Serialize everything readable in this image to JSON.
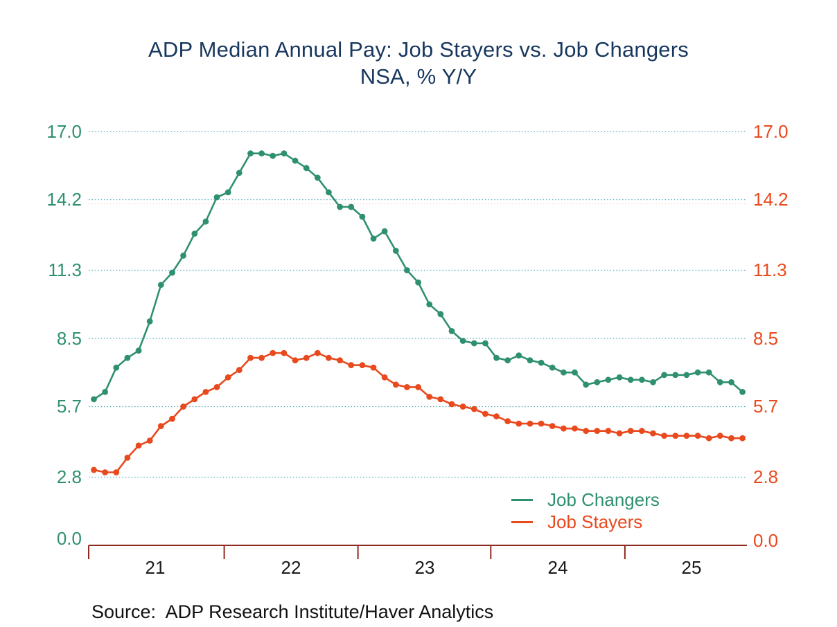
{
  "title": {
    "line1": "ADP Median Annual Pay: Job Stayers vs. Job Changers",
    "line2": "NSA, % Y/Y"
  },
  "source": "Source:  ADP Research Institute/Haver Analytics",
  "legend": [
    {
      "label": "Job Changers",
      "color": "#2F9070"
    },
    {
      "label": "Job Stayers",
      "color": "#E8491D"
    }
  ],
  "axes": {
    "left_ticks": [
      "17.0",
      "14.2",
      "11.3",
      "8.5",
      "5.7",
      "2.8",
      "0.0"
    ],
    "right_ticks": [
      "17.0",
      "14.2",
      "11.3",
      "8.5",
      "5.7",
      "2.8",
      "0.0"
    ],
    "x_ticks": [
      "21",
      "22",
      "23",
      "24",
      "25"
    ],
    "left_color": "#2F9070",
    "right_color": "#E8491D"
  },
  "colors": {
    "changers": "#2F9070",
    "stayers": "#E8491D",
    "grid": "#58AEBC",
    "grid_companion": "#F5D2C8",
    "axis_line": "#8E2A1F",
    "title": "#17375E",
    "year_labels": "#1A1A1A",
    "background": "#FFFFFF"
  },
  "chart_data": {
    "type": "line",
    "title": "ADP Median Annual Pay: Job Stayers vs. Job Changers",
    "subtitle": "NSA, % Y/Y",
    "xlabel": "",
    "ylabel": "% Y/Y",
    "x_unit": "month",
    "ylim": [
      0,
      17
    ],
    "yticks": [
      0.0,
      2.8,
      5.7,
      8.5,
      11.3,
      14.2,
      17.0
    ],
    "grid": "horizontal-dotted",
    "legend_position": "inside-lower-right",
    "categories": [
      "2021-01",
      "2021-02",
      "2021-03",
      "2021-04",
      "2021-05",
      "2021-06",
      "2021-07",
      "2021-08",
      "2021-09",
      "2021-10",
      "2021-11",
      "2021-12",
      "2022-01",
      "2022-02",
      "2022-03",
      "2022-04",
      "2022-05",
      "2022-06",
      "2022-07",
      "2022-08",
      "2022-09",
      "2022-10",
      "2022-11",
      "2022-12",
      "2023-01",
      "2023-02",
      "2023-03",
      "2023-04",
      "2023-05",
      "2023-06",
      "2023-07",
      "2023-08",
      "2023-09",
      "2023-10",
      "2023-11",
      "2023-12",
      "2024-01",
      "2024-02",
      "2024-03",
      "2024-04",
      "2024-05",
      "2024-06",
      "2024-07",
      "2024-08",
      "2024-09",
      "2024-10",
      "2024-11",
      "2024-12",
      "2025-01",
      "2025-02",
      "2025-03",
      "2025-04",
      "2025-05",
      "2025-06",
      "2025-07",
      "2025-08",
      "2025-09",
      "2025-10",
      "2025-11"
    ],
    "series": [
      {
        "name": "Job Changers",
        "color": "#2F9070",
        "values": [
          6.0,
          6.3,
          7.3,
          7.7,
          8.0,
          9.2,
          10.7,
          11.2,
          11.9,
          12.8,
          13.3,
          14.3,
          14.5,
          15.3,
          16.1,
          16.1,
          16.0,
          16.1,
          15.8,
          15.5,
          15.1,
          14.5,
          13.9,
          13.9,
          13.5,
          12.6,
          12.9,
          12.1,
          11.3,
          10.8,
          9.9,
          9.5,
          8.8,
          8.4,
          8.3,
          8.3,
          7.7,
          7.6,
          7.8,
          7.6,
          7.5,
          7.3,
          7.1,
          7.1,
          6.6,
          6.7,
          6.8,
          6.9,
          6.8,
          6.8,
          6.7,
          7.0,
          7.0,
          7.0,
          7.1,
          7.1,
          6.7,
          6.7,
          6.3
        ]
      },
      {
        "name": "Job Stayers",
        "color": "#E8491D",
        "values": [
          3.1,
          3.0,
          3.0,
          3.6,
          4.1,
          4.3,
          4.9,
          5.2,
          5.7,
          6.0,
          6.3,
          6.5,
          6.9,
          7.2,
          7.7,
          7.7,
          7.9,
          7.9,
          7.6,
          7.7,
          7.9,
          7.7,
          7.6,
          7.4,
          7.4,
          7.3,
          6.9,
          6.6,
          6.5,
          6.5,
          6.1,
          6.0,
          5.8,
          5.7,
          5.6,
          5.4,
          5.3,
          5.1,
          5.0,
          5.0,
          5.0,
          4.9,
          4.8,
          4.8,
          4.7,
          4.7,
          4.7,
          4.6,
          4.7,
          4.7,
          4.6,
          4.5,
          4.5,
          4.5,
          4.5,
          4.4,
          4.5,
          4.4,
          4.4
        ]
      }
    ]
  }
}
